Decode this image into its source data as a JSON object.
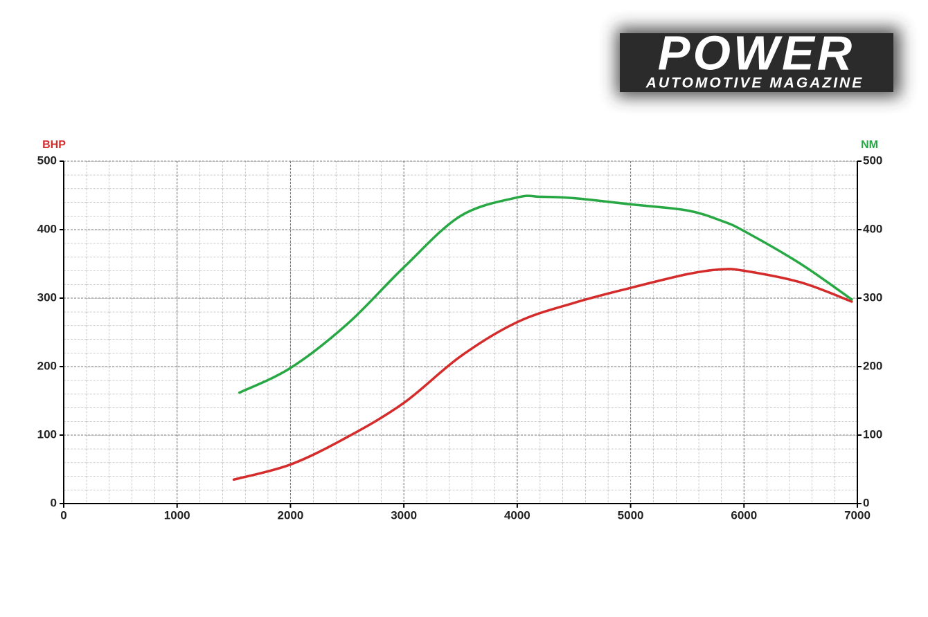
{
  "logo": {
    "title": "POWER",
    "subtitle": "AUTOMOTIVE MAGAZINE"
  },
  "chart_data": {
    "type": "line",
    "xlim": [
      0,
      7000
    ],
    "xticks": [
      0,
      1000,
      2000,
      3000,
      4000,
      5000,
      6000,
      7000
    ],
    "ylim": [
      0,
      500
    ],
    "yticks": [
      0,
      100,
      200,
      300,
      400,
      500
    ],
    "y2lim": [
      0,
      500
    ],
    "y2ticks": [
      0,
      100,
      200,
      300,
      400,
      500
    ],
    "grid": true,
    "series": [
      {
        "name": "BHP",
        "color": "#d42b2b",
        "x": [
          1500,
          2000,
          2500,
          3000,
          3500,
          4000,
          4500,
          5000,
          5500,
          5800,
          6000,
          6500,
          6950
        ],
        "values": [
          35,
          57,
          97,
          147,
          215,
          265,
          293,
          315,
          335,
          342,
          340,
          323,
          295
        ]
      },
      {
        "name": "NM",
        "color": "#27a844",
        "axis": "y2",
        "x": [
          1550,
          2000,
          2500,
          3000,
          3500,
          4000,
          4200,
          4500,
          5000,
          5500,
          5800,
          6000,
          6500,
          6950
        ],
        "values": [
          162,
          198,
          262,
          345,
          420,
          447,
          448,
          446,
          437,
          428,
          413,
          398,
          350,
          298
        ]
      }
    ]
  }
}
